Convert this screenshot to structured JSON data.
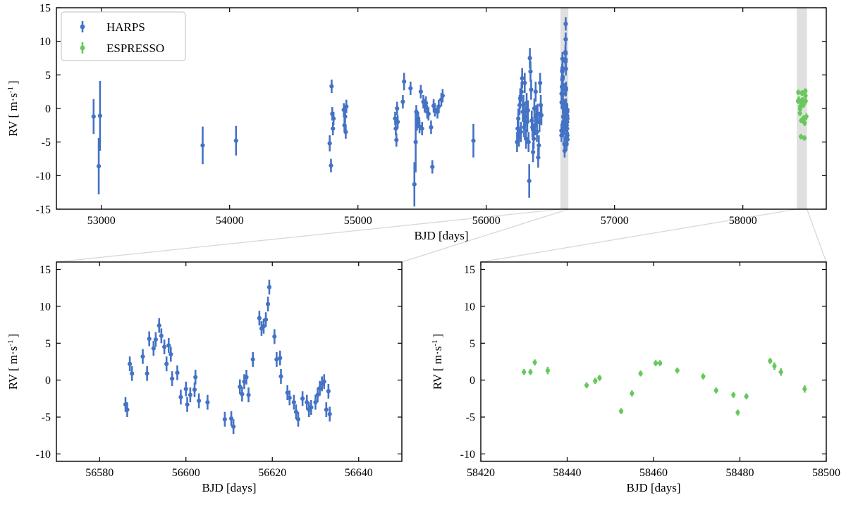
{
  "colors": {
    "harps": "#4472c4",
    "espresso": "#66c95a",
    "highlight": "#e0e0e0",
    "connector": "#d8d8d8"
  },
  "chart_data": [
    {
      "id": "overview",
      "type": "scatter",
      "error_bars": true,
      "xlabel": "BJD [days]",
      "ylabel_main": "RV [ m·s",
      "ylabel_sup": "-1",
      "ylabel_tail": "]",
      "xlim": [
        52650,
        58650
      ],
      "ylim": [
        -15,
        15
      ],
      "xticks": [
        53000,
        54000,
        55000,
        56000,
        57000,
        58000
      ],
      "yticks": [
        -15,
        -10,
        -5,
        0,
        5,
        10,
        15
      ],
      "legend": {
        "position": "top-left",
        "entries": [
          "HARPS",
          "ESPRESSO"
        ]
      },
      "highlight_spans": [
        [
          56578,
          56640
        ],
        [
          58420,
          58500
        ]
      ],
      "series": [
        {
          "name": "HARPS",
          "points": [
            [
              52940,
              -1.2,
              2.6
            ],
            [
              52980,
              -8.6,
              4.2
            ],
            [
              52990,
              -1.1,
              5.2
            ],
            [
              53790,
              -5.5,
              2.8
            ],
            [
              54050,
              -4.8,
              2.2
            ],
            [
              54780,
              -5.2,
              1.2
            ],
            [
              54790,
              -8.5,
              1.0
            ],
            [
              54795,
              3.3,
              1.0
            ],
            [
              54800,
              -0.8,
              1.0
            ],
            [
              54805,
              -3.0,
              1.0
            ],
            [
              54810,
              -1.5,
              1.0
            ],
            [
              54890,
              -0.2,
              1.0
            ],
            [
              54895,
              -2.5,
              1.0
            ],
            [
              54900,
              -1.2,
              1.0
            ],
            [
              54905,
              -3.5,
              1.0
            ],
            [
              54910,
              0.3,
              1.0
            ],
            [
              55290,
              -1.5,
              1.0
            ],
            [
              55295,
              -3.0,
              1.0
            ],
            [
              55300,
              -4.7,
              1.0
            ],
            [
              55305,
              0.0,
              1.0
            ],
            [
              55310,
              -2.0,
              1.0
            ],
            [
              55350,
              1.0,
              1.0
            ],
            [
              55360,
              4.0,
              1.3
            ],
            [
              55410,
              3.0,
              1.0
            ],
            [
              55440,
              -11.3,
              3.3
            ],
            [
              55450,
              -5.0,
              4.5
            ],
            [
              55455,
              -0.5,
              1.0
            ],
            [
              55460,
              -2.3,
              1.0
            ],
            [
              55470,
              -1.5,
              1.0
            ],
            [
              55480,
              -2.7,
              1.0
            ],
            [
              55490,
              2.5,
              1.0
            ],
            [
              55500,
              -3.0,
              1.0
            ],
            [
              55510,
              1.0,
              1.0
            ],
            [
              55520,
              0.4,
              1.0
            ],
            [
              55530,
              0.8,
              1.0
            ],
            [
              55540,
              -0.5,
              1.0
            ],
            [
              55550,
              -0.8,
              1.0
            ],
            [
              55570,
              -2.8,
              1.0
            ],
            [
              55580,
              -8.7,
              1.0
            ],
            [
              55590,
              0.4,
              1.0
            ],
            [
              55600,
              -0.2,
              1.0
            ],
            [
              55620,
              -0.5,
              1.0
            ],
            [
              55630,
              0.3,
              1.0
            ],
            [
              55650,
              1.3,
              1.0
            ],
            [
              55660,
              1.9,
              1.0
            ],
            [
              55900,
              -4.8,
              2.5
            ],
            [
              56240,
              -5.0,
              1.5
            ],
            [
              56245,
              -3.0,
              1.5
            ],
            [
              56250,
              -1.5,
              1.5
            ],
            [
              56255,
              -4.2,
              1.5
            ],
            [
              56260,
              0.5,
              1.5
            ],
            [
              56265,
              1.5,
              1.5
            ],
            [
              56270,
              -3.5,
              1.5
            ],
            [
              56275,
              2.5,
              1.5
            ],
            [
              56280,
              4.5,
              1.5
            ],
            [
              56285,
              -0.5,
              1.5
            ],
            [
              56290,
              0.5,
              1.5
            ],
            [
              56295,
              -2.8,
              1.5
            ],
            [
              56300,
              3.8,
              1.5
            ],
            [
              56305,
              -1.2,
              1.5
            ],
            [
              56310,
              -4.5,
              1.5
            ],
            [
              56315,
              0.8,
              1.5
            ],
            [
              56320,
              -2.0,
              1.5
            ],
            [
              56325,
              -0.3,
              1.5
            ],
            [
              56330,
              -5.0,
              1.5
            ],
            [
              56335,
              -10.8,
              2.5
            ],
            [
              56340,
              7.5,
              1.5
            ],
            [
              56345,
              5.5,
              1.5
            ],
            [
              56350,
              2.8,
              1.5
            ],
            [
              56355,
              -1.8,
              1.5
            ],
            [
              56360,
              -2.8,
              1.5
            ],
            [
              56365,
              -6.5,
              1.5
            ],
            [
              56370,
              -4.5,
              1.5
            ],
            [
              56375,
              0.0,
              1.5
            ],
            [
              56380,
              -2.5,
              1.5
            ],
            [
              56385,
              2.5,
              1.5
            ],
            [
              56390,
              -1.0,
              1.5
            ],
            [
              56395,
              -3.5,
              1.5
            ],
            [
              56400,
              -0.8,
              1.5
            ],
            [
              56405,
              -7.3,
              1.5
            ],
            [
              56410,
              -5.5,
              1.5
            ],
            [
              56415,
              -2.0,
              1.5
            ],
            [
              56420,
              3.8,
              1.5
            ],
            [
              56425,
              0.5,
              1.5
            ],
            [
              56430,
              -1.0,
              1.5
            ],
            [
              56586,
              -3.3,
              1.0
            ],
            [
              56586.4,
              -4.0,
              1.0
            ],
            [
              56587,
              2.2,
              1.0
            ],
            [
              56587.5,
              0.9,
              1.0
            ],
            [
              56590,
              3.2,
              1.0
            ],
            [
              56591,
              0.9,
              1.0
            ],
            [
              56591.5,
              5.6,
              1.0
            ],
            [
              56592.5,
              4.3,
              1.0
            ],
            [
              56593,
              5.5,
              1.0
            ],
            [
              56593.8,
              7.4,
              1.0
            ],
            [
              56594.3,
              6.0,
              1.0
            ],
            [
              56595,
              4.5,
              1.0
            ],
            [
              56595.5,
              2.2,
              1.0
            ],
            [
              56596,
              4.7,
              1.0
            ],
            [
              56596.5,
              3.5,
              1.0
            ],
            [
              56596.8,
              0.2,
              1.0
            ],
            [
              56598,
              1.0,
              1.0
            ],
            [
              56598.8,
              -2.3,
              1.0
            ],
            [
              56600,
              -1.2,
              1.0
            ],
            [
              56600.3,
              -3.3,
              1.0
            ],
            [
              56601,
              -2.0,
              1.0
            ],
            [
              56602,
              -1.3,
              1.0
            ],
            [
              56602.2,
              0.4,
              1.0
            ],
            [
              56603,
              -2.8,
              1.0
            ],
            [
              56605,
              -3.0,
              1.0
            ],
            [
              56609,
              -5.3,
              1.0
            ],
            [
              56610.5,
              -5.2,
              1.0
            ],
            [
              56611,
              -6.3,
              1.0
            ],
            [
              56612.5,
              -0.9,
              1.0
            ],
            [
              56613,
              -1.9,
              1.0
            ],
            [
              56613.5,
              -0.2,
              1.0
            ],
            [
              56614,
              0.4,
              1.0
            ],
            [
              56614.5,
              -2.0,
              1.0
            ],
            [
              56615.5,
              2.8,
              1.0
            ],
            [
              56617,
              8.4,
              1.0
            ],
            [
              56617.5,
              7.0,
              1.0
            ],
            [
              56618,
              7.3,
              1.0
            ],
            [
              56618.5,
              8.2,
              1.0
            ],
            [
              56619,
              10.3,
              1.0
            ],
            [
              56619.3,
              12.6,
              1.0
            ],
            [
              56620.5,
              5.9,
              1.0
            ],
            [
              56621,
              2.8,
              1.0
            ],
            [
              56621.8,
              3.0,
              1.0
            ],
            [
              56622,
              0.5,
              1.0
            ],
            [
              56623.5,
              -1.7,
              1.0
            ],
            [
              56624,
              -2.4,
              1.0
            ],
            [
              56625,
              -3.0,
              1.0
            ],
            [
              56625.5,
              -4.3,
              1.0
            ],
            [
              56626,
              -5.3,
              1.0
            ],
            [
              56627,
              -2.5,
              1.0
            ],
            [
              56628,
              -3.0,
              1.0
            ],
            [
              56628.5,
              -4.0,
              1.0
            ],
            [
              56629,
              -3.7,
              1.0
            ],
            [
              56630,
              -3.0,
              1.0
            ],
            [
              56630.5,
              -2.0,
              1.0
            ],
            [
              56631,
              -1.1,
              1.0
            ],
            [
              56631.5,
              -0.5,
              1.0
            ],
            [
              56632,
              -0.2,
              1.0
            ],
            [
              56632.5,
              -4.0,
              1.0
            ],
            [
              56633,
              -1.5,
              1.0
            ],
            [
              56633.3,
              -4.6,
              1.0
            ]
          ]
        },
        {
          "name": "ESPRESSO",
          "points": [
            [
              58430,
              1.1,
              0.4
            ],
            [
              58431.5,
              1.1,
              0.4
            ],
            [
              58432.5,
              2.4,
              0.4
            ],
            [
              58435.5,
              1.3,
              0.5
            ],
            [
              58444.5,
              -0.7,
              0.4
            ],
            [
              58446.5,
              -0.1,
              0.4
            ],
            [
              58447.5,
              0.3,
              0.4
            ],
            [
              58452.5,
              -4.2,
              0.4
            ],
            [
              58455,
              -1.8,
              0.4
            ],
            [
              58457,
              0.9,
              0.4
            ],
            [
              58460.5,
              2.3,
              0.4
            ],
            [
              58461.5,
              2.3,
              0.4
            ],
            [
              58465.5,
              1.3,
              0.4
            ],
            [
              58471.5,
              0.5,
              0.4
            ],
            [
              58474.5,
              -1.4,
              0.4
            ],
            [
              58478.5,
              -2.0,
              0.4
            ],
            [
              58479.5,
              -4.4,
              0.4
            ],
            [
              58481.5,
              -2.2,
              0.4
            ],
            [
              58487,
              2.6,
              0.4
            ],
            [
              58488,
              1.9,
              0.5
            ],
            [
              58489.5,
              1.1,
              0.5
            ],
            [
              58495,
              -1.2,
              0.5
            ]
          ]
        }
      ]
    },
    {
      "id": "zoom-harps",
      "type": "scatter",
      "error_bars": true,
      "xlabel": "BJD [days]",
      "ylabel_main": "RV [ m·s",
      "ylabel_sup": "-1",
      "ylabel_tail": "]",
      "xlim": [
        56570,
        56650
      ],
      "ylim": [
        -11,
        16
      ],
      "xticks": [
        56580,
        56600,
        56620,
        56640
      ],
      "yticks": [
        -10,
        -5,
        0,
        5,
        10,
        15
      ],
      "series_ref": "HARPS"
    },
    {
      "id": "zoom-espresso",
      "type": "scatter",
      "error_bars": true,
      "xlabel": "BJD [days]",
      "ylabel_main": "RV [ m·s",
      "ylabel_sup": "-1",
      "ylabel_tail": "]",
      "xlim": [
        58420,
        58500
      ],
      "ylim": [
        -11,
        16
      ],
      "xticks": [
        58420,
        58440,
        58460,
        58480,
        58500
      ],
      "yticks": [
        -10,
        -5,
        0,
        5,
        10,
        15
      ],
      "series_ref": "ESPRESSO"
    }
  ]
}
